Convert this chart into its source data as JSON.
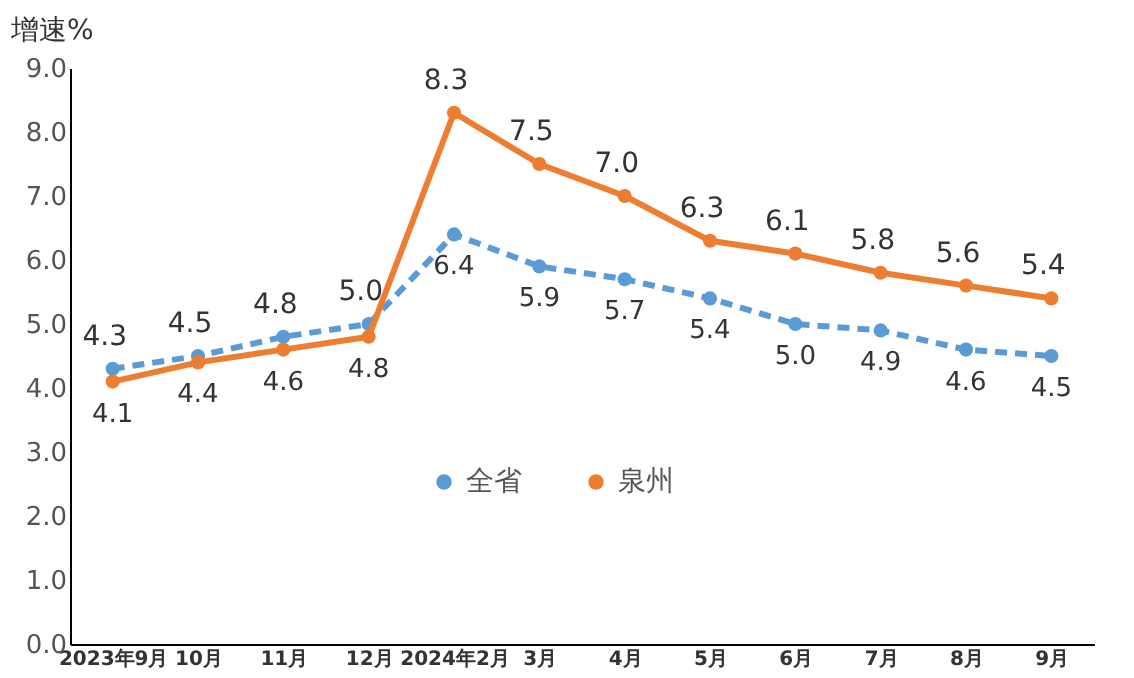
{
  "chart_data": {
    "type": "line",
    "ylabel": "增速%",
    "categories": [
      "2023年9月",
      "10月",
      "11月",
      "12月",
      "2024年2月",
      "3月",
      "4月",
      "5月",
      "6月",
      "7月",
      "8月",
      "9月"
    ],
    "series": [
      {
        "name": "全省",
        "color": "#5b9bd5",
        "line_style": "dashed",
        "values": [
          4.3,
          4.5,
          4.8,
          5.0,
          6.4,
          5.9,
          5.7,
          5.4,
          5.0,
          4.9,
          4.6,
          4.5
        ],
        "value_labels": [
          "4.3",
          "4.5",
          "4.8",
          "5.0",
          "6.4",
          "5.9",
          "5.7",
          "5.4",
          "5.0",
          "4.9",
          "4.6",
          "4.5"
        ]
      },
      {
        "name": "泉州",
        "color": "#ed7d31",
        "line_style": "solid",
        "values": [
          4.1,
          4.4,
          4.6,
          4.8,
          8.3,
          7.5,
          7.0,
          6.3,
          6.1,
          5.8,
          5.6,
          5.4
        ],
        "value_labels": [
          "4.1",
          "4.4",
          "4.6",
          "4.8",
          "8.3",
          "7.5",
          "7.0",
          "6.3",
          "6.1",
          "5.8",
          "5.6",
          "5.4"
        ]
      }
    ],
    "ylim": [
      0,
      9
    ],
    "yticks": [
      {
        "value": 0,
        "label": "0.0"
      },
      {
        "value": 1,
        "label": "1.0"
      },
      {
        "value": 2,
        "label": "2.0"
      },
      {
        "value": 3,
        "label": "3.0"
      },
      {
        "value": 4,
        "label": "4.0"
      },
      {
        "value": 5,
        "label": "5.0"
      },
      {
        "value": 6,
        "label": "6.0"
      },
      {
        "value": 7,
        "label": "7.0"
      },
      {
        "value": 8,
        "label": "8.0"
      },
      {
        "value": 9,
        "label": "9.0"
      }
    ],
    "grid": false,
    "legend": "bottom",
    "marker": "circle",
    "data_labels": true
  }
}
